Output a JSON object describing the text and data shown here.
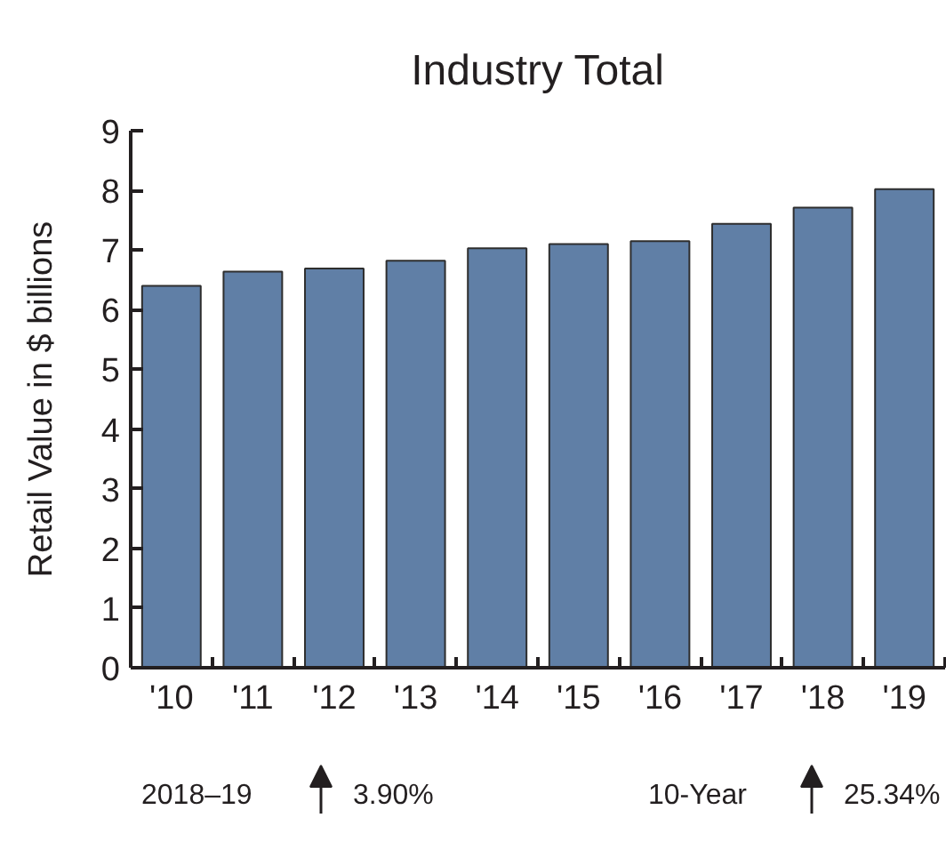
{
  "chart_data": {
    "type": "bar",
    "title": "Industry Total",
    "ylabel": "Retail Value in $ billions",
    "categories": [
      "'10",
      "'11",
      "'12",
      "'13",
      "'14",
      "'15",
      "'16",
      "'17",
      "'18",
      "'19"
    ],
    "values": [
      6.4,
      6.64,
      6.69,
      6.82,
      7.03,
      7.1,
      7.15,
      7.44,
      7.71,
      8.02
    ],
    "color": "#607fa6",
    "ylim": [
      0,
      9
    ],
    "yticks": [
      0,
      1,
      2,
      3,
      4,
      5,
      6,
      7,
      8,
      9
    ],
    "annotations": [
      "2018–19",
      "3.90%",
      "10-Year",
      "25.34%"
    ]
  }
}
